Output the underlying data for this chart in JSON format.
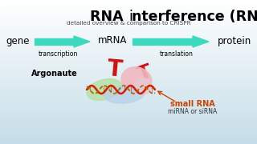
{
  "title1": "RNA ",
  "title2": "i",
  "title3": "nterference (RNAi)",
  "subtitle": "detailed overview & comparison to CRISPR",
  "label_gene": "gene",
  "label_mrna": "mRNA",
  "label_protein": "protein",
  "label_transcription": "transcription",
  "label_translation": "translation",
  "label_argonaute": "Argonaute",
  "label_small_rna": "small RNA",
  "label_mirna": "miRNA or siRNA",
  "arrow_color": "#3dd9be",
  "inhibit_color": "#cc1111",
  "small_rna_color": "#cc4400",
  "bg_top": "#f8f8f8",
  "bg_bottom": "#c5dde8",
  "title_color": "#000000",
  "body_text_color": "#000000",
  "blob_green": "#b8e0a8",
  "blob_pink": "#f0b8c0",
  "blob_blue": "#b8d0e8",
  "blob_pink2": "#e8c8d0",
  "rna_color1": "#cc2200",
  "rna_color2": "#aa6600"
}
